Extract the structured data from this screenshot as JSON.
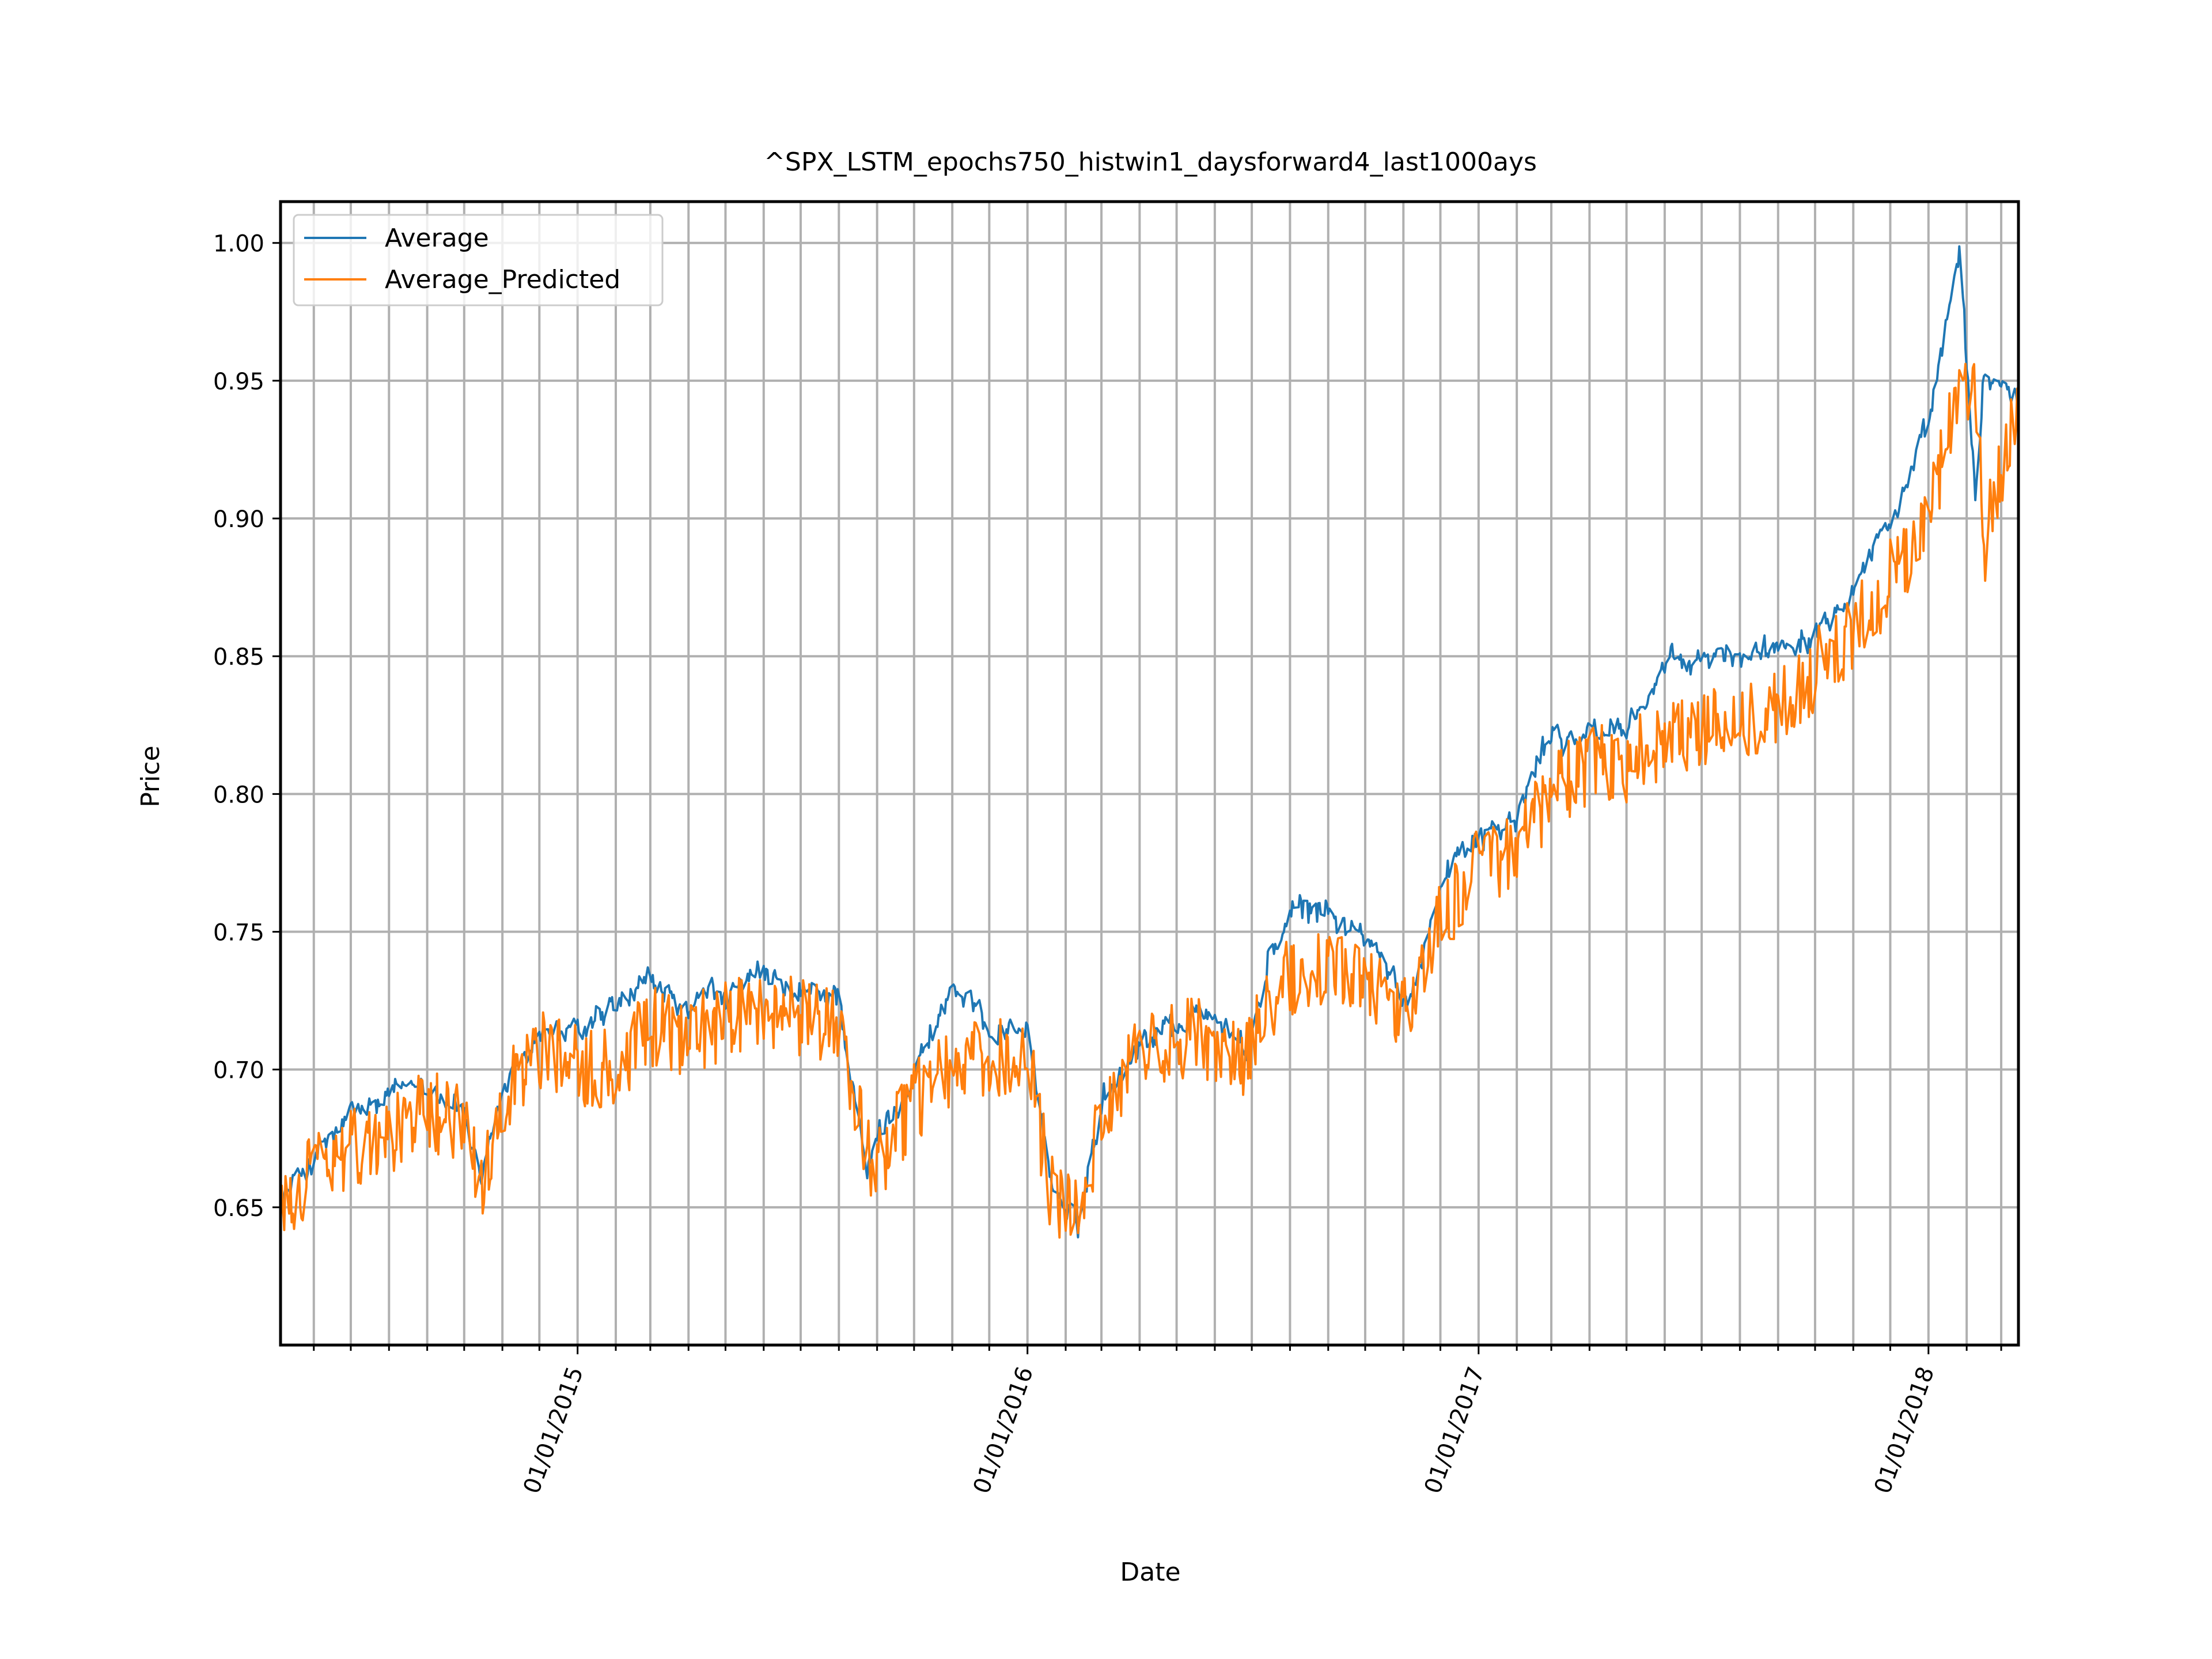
{
  "chart_data": {
    "type": "line",
    "title": "^SPX_LSTM_epochs750_histwin1_daysforward4_last1000ays",
    "xlabel": "Date",
    "ylabel": "Price",
    "xlim": [
      "2014-05-05",
      "2018-03-15"
    ],
    "ylim": [
      0.6,
      1.015
    ],
    "x_ticks": [
      {
        "date": "2015-01-01",
        "label": "01/01/2015"
      },
      {
        "date": "2016-01-01",
        "label": "01/01/2016"
      },
      {
        "date": "2017-01-01",
        "label": "01/01/2017"
      },
      {
        "date": "2018-01-01",
        "label": "01/01/2018"
      }
    ],
    "y_ticks": [
      {
        "value": 0.65,
        "label": "0.65"
      },
      {
        "value": 0.7,
        "label": "0.70"
      },
      {
        "value": 0.75,
        "label": "0.75"
      },
      {
        "value": 0.8,
        "label": "0.80"
      },
      {
        "value": 0.85,
        "label": "0.85"
      },
      {
        "value": 0.9,
        "label": "0.90"
      },
      {
        "value": 0.95,
        "label": "0.95"
      },
      {
        "value": 1.0,
        "label": "1.00"
      }
    ],
    "minor_gridline_dates": [
      "2014-06-01",
      "2014-07-01",
      "2014-08-01",
      "2014-09-01",
      "2014-10-01",
      "2014-11-01",
      "2014-12-01",
      "2015-02-01",
      "2015-03-01",
      "2015-04-01",
      "2015-05-01",
      "2015-06-01",
      "2015-07-01",
      "2015-08-01",
      "2015-09-01",
      "2015-10-01",
      "2015-11-01",
      "2015-12-01",
      "2016-02-01",
      "2016-03-01",
      "2016-04-01",
      "2016-05-01",
      "2016-06-01",
      "2016-07-01",
      "2016-08-01",
      "2016-09-01",
      "2016-10-01",
      "2016-11-01",
      "2016-12-01",
      "2017-02-01",
      "2017-03-01",
      "2017-04-01",
      "2017-05-01",
      "2017-06-01",
      "2017-07-01",
      "2017-08-01",
      "2017-09-01",
      "2017-10-01",
      "2017-11-01",
      "2017-12-01",
      "2018-02-01",
      "2018-03-01"
    ],
    "grid": true,
    "legend_position": "top-left",
    "colors": {
      "Average": "#1f77b4",
      "Average_Predicted": "#ff7f0e",
      "grid": "#b0b0b0"
    },
    "anchor_dates": [
      "2014-05-05",
      "2014-06-01",
      "2014-07-01",
      "2014-08-01",
      "2014-09-01",
      "2014-10-01",
      "2014-10-15",
      "2014-11-01",
      "2014-12-01",
      "2015-01-01",
      "2015-02-01",
      "2015-03-01",
      "2015-04-01",
      "2015-05-01",
      "2015-06-01",
      "2015-07-01",
      "2015-08-01",
      "2015-08-24",
      "2015-09-01",
      "2015-10-01",
      "2015-11-01",
      "2015-12-01",
      "2016-01-01",
      "2016-01-20",
      "2016-02-11",
      "2016-03-01",
      "2016-04-01",
      "2016-05-01",
      "2016-06-01",
      "2016-06-27",
      "2016-07-15",
      "2016-08-01",
      "2016-09-01",
      "2016-10-01",
      "2016-11-04",
      "2016-12-01",
      "2017-01-01",
      "2017-02-01",
      "2017-03-01",
      "2017-04-01",
      "2017-05-01",
      "2017-06-01",
      "2017-07-01",
      "2017-08-01",
      "2017-09-01",
      "2017-10-01",
      "2017-11-01",
      "2017-12-01",
      "2018-01-01",
      "2018-01-26",
      "2018-02-08",
      "2018-02-15",
      "2018-03-01",
      "2018-03-15"
    ],
    "series": [
      {
        "name": "Average",
        "values": [
          0.652,
          0.668,
          0.682,
          0.688,
          0.697,
          0.685,
          0.655,
          0.69,
          0.715,
          0.712,
          0.72,
          0.73,
          0.72,
          0.728,
          0.732,
          0.725,
          0.728,
          0.66,
          0.675,
          0.7,
          0.73,
          0.715,
          0.716,
          0.66,
          0.64,
          0.69,
          0.712,
          0.718,
          0.722,
          0.705,
          0.74,
          0.755,
          0.758,
          0.748,
          0.722,
          0.77,
          0.788,
          0.79,
          0.823,
          0.82,
          0.825,
          0.845,
          0.848,
          0.85,
          0.855,
          0.862,
          0.88,
          0.9,
          0.93,
          0.996,
          0.905,
          0.95,
          0.95,
          0.94
        ]
      },
      {
        "name": "Average_Predicted",
        "values": [
          0.65,
          0.662,
          0.672,
          0.676,
          0.685,
          0.68,
          0.655,
          0.69,
          0.708,
          0.702,
          0.7,
          0.715,
          0.712,
          0.718,
          0.722,
          0.72,
          0.716,
          0.67,
          0.665,
          0.688,
          0.7,
          0.705,
          0.705,
          0.655,
          0.65,
          0.68,
          0.705,
          0.712,
          0.71,
          0.705,
          0.722,
          0.735,
          0.735,
          0.73,
          0.718,
          0.755,
          0.775,
          0.78,
          0.8,
          0.81,
          0.812,
          0.818,
          0.825,
          0.828,
          0.83,
          0.845,
          0.86,
          0.878,
          0.9,
          0.945,
          0.95,
          0.89,
          0.92,
          0.935
        ]
      }
    ]
  }
}
